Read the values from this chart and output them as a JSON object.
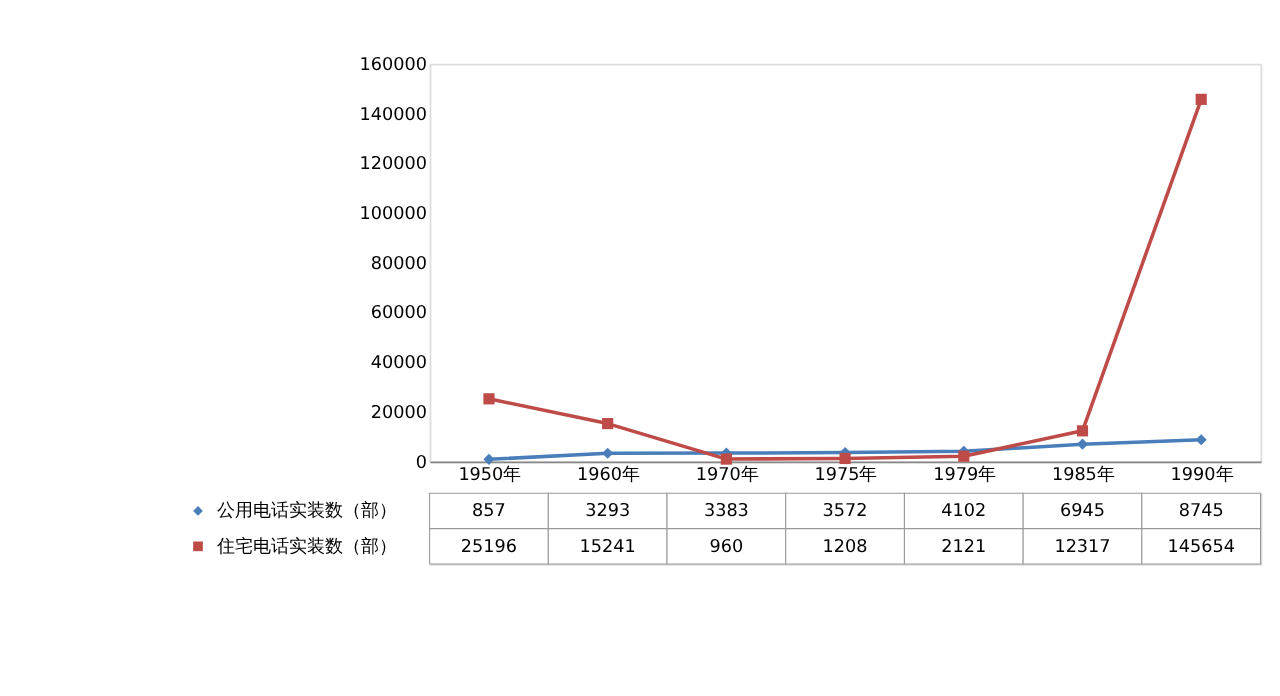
{
  "chart_data": {
    "type": "line",
    "categories": [
      "1950年",
      "1960年",
      "1970年",
      "1975年",
      "1979年",
      "1985年",
      "1990年"
    ],
    "series": [
      {
        "name": "公用电话实装数（部）",
        "color": "#4a7ebb",
        "marker": "diamond",
        "values": [
          857,
          3293,
          3383,
          3572,
          4102,
          6945,
          8745
        ]
      },
      {
        "name": "住宅电话实装数（部）",
        "color": "#be4b48",
        "marker": "square",
        "values": [
          25196,
          15241,
          960,
          1208,
          2121,
          12317,
          145654
        ]
      }
    ],
    "ylim": [
      0,
      160000
    ],
    "yticks": [
      0,
      20000,
      40000,
      60000,
      80000,
      100000,
      120000,
      140000,
      160000
    ],
    "grid": false,
    "legend": "bottom",
    "data_labels": true
  }
}
